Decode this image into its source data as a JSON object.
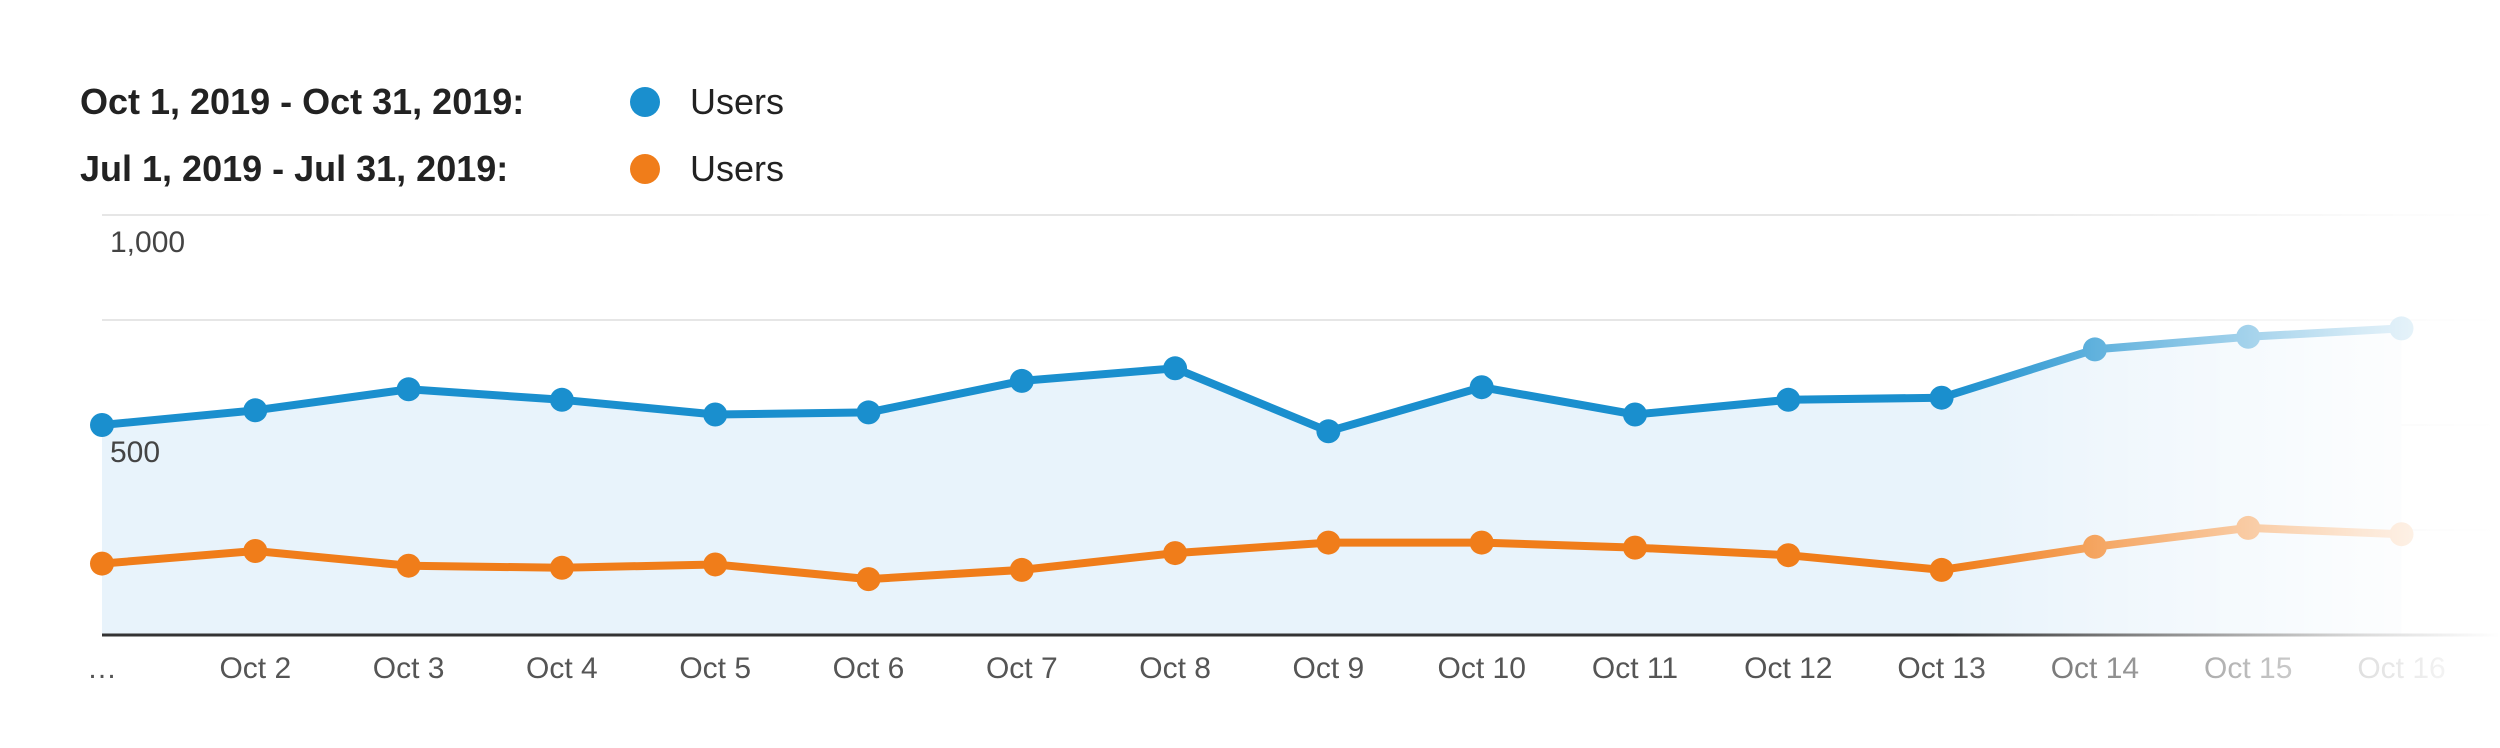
{
  "legend": {
    "rows": [
      {
        "period": "Oct 1, 2019 - Oct 31, 2019:",
        "metric": "Users",
        "color": "#1a8fce"
      },
      {
        "period": "Jul 1, 2019 - Jul 31, 2019:",
        "metric": "Users",
        "color": "#f07d1a"
      }
    ]
  },
  "chart_data": {
    "type": "line",
    "categories": [
      "…",
      "Oct 2",
      "Oct 3",
      "Oct 4",
      "Oct 5",
      "Oct 6",
      "Oct 7",
      "Oct 8",
      "Oct 9",
      "Oct 10",
      "Oct 11",
      "Oct 12",
      "Oct 13",
      "Oct 14",
      "Oct 15",
      "Oct 16"
    ],
    "series": [
      {
        "name": "Users",
        "period": "Oct 1, 2019 - Oct 31, 2019",
        "color": "#1a8fce",
        "area_fill": "#e8f3fb",
        "values": [
          500,
          535,
          585,
          560,
          525,
          530,
          605,
          635,
          485,
          590,
          525,
          560,
          565,
          680,
          710,
          730
        ]
      },
      {
        "name": "Users",
        "period": "Jul 1, 2019 - Jul 31, 2019",
        "color": "#f07d1a",
        "values": [
          170,
          200,
          165,
          160,
          168,
          133,
          155,
          195,
          220,
          220,
          208,
          190,
          155,
          210,
          255,
          240
        ]
      }
    ],
    "y_tick_labels": [
      {
        "value": 1000,
        "label": "1,000"
      },
      {
        "value": 500,
        "label": "500"
      }
    ],
    "ylim": [
      0,
      1000
    ],
    "grid": true,
    "legend_position": "top-left",
    "right_edge_fade": true
  }
}
